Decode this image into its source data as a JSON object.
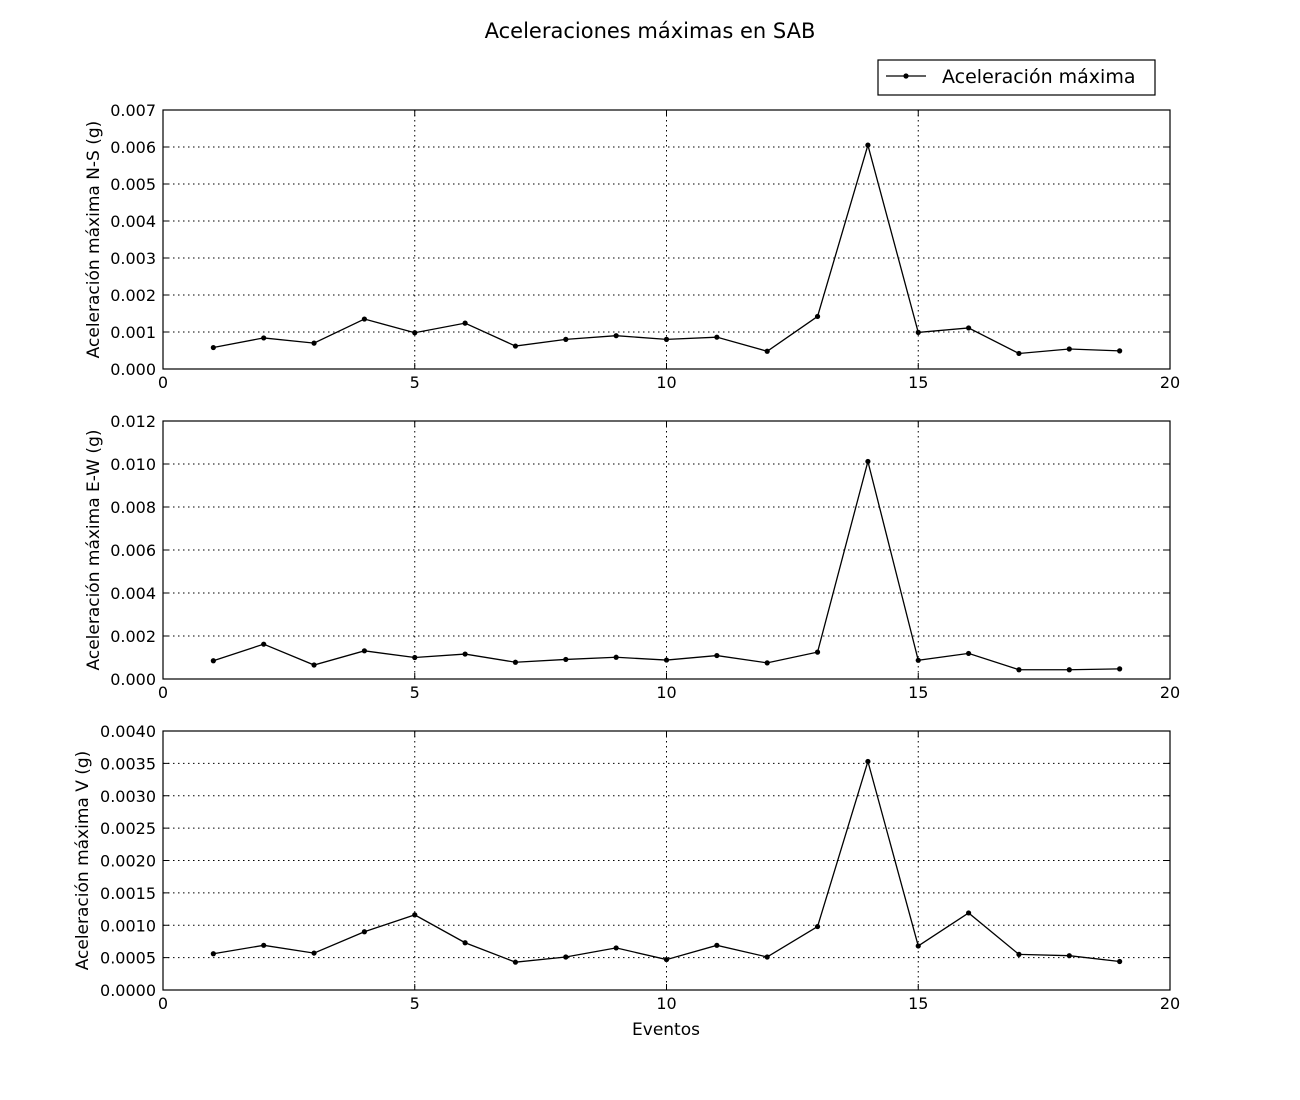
{
  "chart_data": {
    "type": "line",
    "title": "Aceleraciones máximas en SAB",
    "legend": {
      "entries": [
        "Aceleración máxima"
      ],
      "placement": "top-right",
      "marker": "dot-line"
    },
    "xlabel": "Eventos",
    "grid": true,
    "line_color": "#000000",
    "panels": [
      {
        "name": "panel-ns",
        "ylabel": "Aceleración máxima N-S (g)",
        "xlim": [
          0,
          20
        ],
        "xticks": [
          0,
          5,
          10,
          15,
          20
        ],
        "xtick_labels": [
          "0",
          "5",
          "10",
          "15",
          "20"
        ],
        "ylim": [
          0,
          0.007
        ],
        "yticks": [
          0,
          0.001,
          0.002,
          0.003,
          0.004,
          0.005,
          0.006,
          0.007
        ],
        "ytick_labels": [
          "0.000",
          "0.001",
          "0.002",
          "0.003",
          "0.004",
          "0.005",
          "0.006",
          "0.007"
        ],
        "x": [
          1,
          2,
          3,
          4,
          5,
          6,
          7,
          8,
          9,
          10,
          11,
          12,
          13,
          14,
          15,
          16,
          17,
          18,
          19
        ],
        "y": [
          0.00058,
          0.00084,
          0.0007,
          0.00135,
          0.00098,
          0.00124,
          0.00062,
          0.0008,
          0.0009,
          0.0008,
          0.00086,
          0.00048,
          0.00142,
          0.00605,
          0.00099,
          0.00111,
          0.00042,
          0.00054,
          0.00049
        ]
      },
      {
        "name": "panel-ew",
        "ylabel": "Aceleración máxima E-W (g)",
        "xlim": [
          0,
          20
        ],
        "xticks": [
          0,
          5,
          10,
          15,
          20
        ],
        "xtick_labels": [
          "0",
          "5",
          "10",
          "15",
          "20"
        ],
        "ylim": [
          0,
          0.012
        ],
        "yticks": [
          0,
          0.002,
          0.004,
          0.006,
          0.008,
          0.01,
          0.012
        ],
        "ytick_labels": [
          "0.000",
          "0.002",
          "0.004",
          "0.006",
          "0.008",
          "0.010",
          "0.012"
        ],
        "x": [
          1,
          2,
          3,
          4,
          5,
          6,
          7,
          8,
          9,
          10,
          11,
          12,
          13,
          14,
          15,
          16,
          17,
          18,
          19
        ],
        "y": [
          0.00085,
          0.00162,
          0.00065,
          0.00131,
          0.001,
          0.00116,
          0.00078,
          0.00091,
          0.00101,
          0.00088,
          0.00109,
          0.00075,
          0.00125,
          0.01012,
          0.00087,
          0.00119,
          0.00043,
          0.00043,
          0.00047
        ]
      },
      {
        "name": "panel-v",
        "ylabel": "Aceleración máxima V (g)",
        "xlim": [
          0,
          20
        ],
        "xticks": [
          0,
          5,
          10,
          15,
          20
        ],
        "xtick_labels": [
          "0",
          "5",
          "10",
          "15",
          "20"
        ],
        "ylim": [
          0,
          0.004
        ],
        "yticks": [
          0,
          0.0005,
          0.001,
          0.0015,
          0.002,
          0.0025,
          0.003,
          0.0035,
          0.004
        ],
        "ytick_labels": [
          "0.0000",
          "0.0005",
          "0.0010",
          "0.0015",
          "0.0020",
          "0.0025",
          "0.0030",
          "0.0035",
          "0.0040"
        ],
        "x": [
          1,
          2,
          3,
          4,
          5,
          6,
          7,
          8,
          9,
          10,
          11,
          12,
          13,
          14,
          15,
          16,
          17,
          18,
          19
        ],
        "y": [
          0.00056,
          0.00069,
          0.00057,
          0.0009,
          0.00116,
          0.00073,
          0.00043,
          0.00051,
          0.00065,
          0.00047,
          0.00069,
          0.00051,
          0.00098,
          0.00353,
          0.00068,
          0.00119,
          0.00055,
          0.00053,
          0.00044
        ]
      }
    ]
  }
}
